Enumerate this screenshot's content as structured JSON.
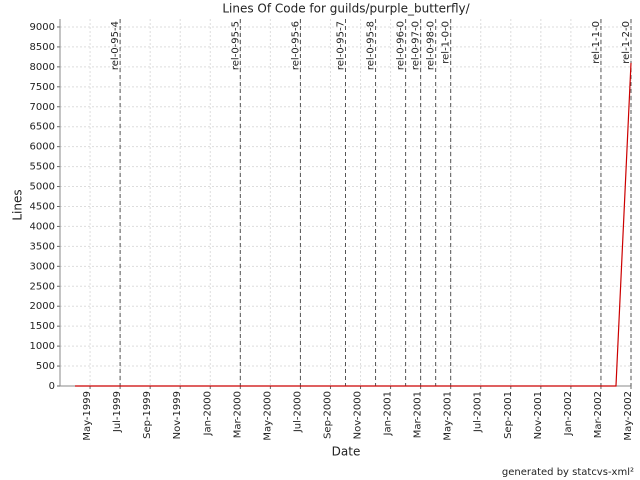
{
  "chart_data": {
    "type": "line",
    "title": "Lines Of Code for guilds/purple_butterfly/",
    "x_label": "Date",
    "y_label": "Lines",
    "footer": "generated by statcvs-xml²",
    "x": [
      "1999-04",
      "2002-04",
      "2002-05"
    ],
    "values": [
      0,
      0,
      8100
    ],
    "color": "#cc0000",
    "markers": [
      {
        "label": "rel-0-95-4",
        "x": "1999-07"
      },
      {
        "label": "rel-0-95-5",
        "x": "2000-03"
      },
      {
        "label": "rel-0-95-6",
        "x": "2000-07"
      },
      {
        "label": "rel-0-95-7",
        "x": "2000-10"
      },
      {
        "label": "rel-0-95-8",
        "x": "2000-12"
      },
      {
        "label": "rel-0-96-0",
        "x": "2001-02"
      },
      {
        "label": "rel-0-97-0",
        "x": "2001-03"
      },
      {
        "label": "rel-0-98-0",
        "x": "2001-04"
      },
      {
        "label": "rel-1-0-0",
        "x": "2001-05"
      },
      {
        "label": "rel-1-1-0",
        "x": "2002-03"
      },
      {
        "label": "rel-1-2-0",
        "x": "2002-05"
      }
    ],
    "xlim": [
      "1999-03",
      "2002-05"
    ],
    "ylim": [
      0,
      9200
    ],
    "yticks": [
      0,
      500,
      1000,
      1500,
      2000,
      2500,
      3000,
      3500,
      4000,
      4500,
      5000,
      5500,
      6000,
      6500,
      7000,
      7500,
      8000,
      8500,
      9000
    ],
    "xticks": [
      {
        "value": "1999-05",
        "label": "May-1999"
      },
      {
        "value": "1999-07",
        "label": "Jul-1999"
      },
      {
        "value": "1999-09",
        "label": "Sep-1999"
      },
      {
        "value": "1999-11",
        "label": "Nov-1999"
      },
      {
        "value": "2000-01",
        "label": "Jan-2000"
      },
      {
        "value": "2000-03",
        "label": "Mar-2000"
      },
      {
        "value": "2000-05",
        "label": "May-2000"
      },
      {
        "value": "2000-07",
        "label": "Jul-2000"
      },
      {
        "value": "2000-09",
        "label": "Sep-2000"
      },
      {
        "value": "2000-11",
        "label": "Nov-2000"
      },
      {
        "value": "2001-01",
        "label": "Jan-2001"
      },
      {
        "value": "2001-03",
        "label": "Mar-2001"
      },
      {
        "value": "2001-05",
        "label": "May-2001"
      },
      {
        "value": "2001-07",
        "label": "Jul-2001"
      },
      {
        "value": "2001-09",
        "label": "Sep-2001"
      },
      {
        "value": "2001-11",
        "label": "Nov-2001"
      },
      {
        "value": "2002-01",
        "label": "Jan-2002"
      },
      {
        "value": "2002-03",
        "label": "Mar-2002"
      },
      {
        "value": "2002-05",
        "label": "May-2002"
      }
    ],
    "grid": true
  }
}
